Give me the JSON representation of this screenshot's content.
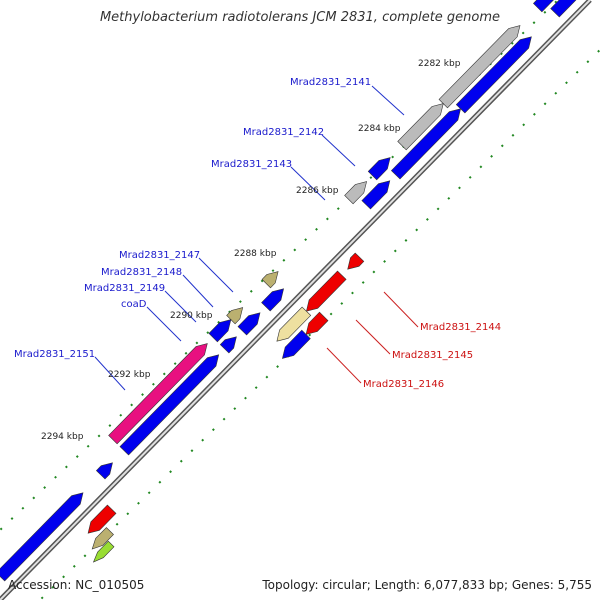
{
  "title": "Methylobacterium radiotolerans JCM 2831, complete genome",
  "footer": {
    "accession": "Accession: NC_010505",
    "summary": "Topology: circular; Length: 6,077,833 bp; Genes: 5,755"
  },
  "colors": {
    "plus_strand": "#0000ee",
    "minus_strand": "#ee0000",
    "grey": "#bbbbbb",
    "khaki": "#bbb070",
    "pale_yellow": "#eee0a0",
    "magenta": "#e81080",
    "lime": "#99dd33",
    "tick": "#228822",
    "backbone": "#777777"
  },
  "kbp_labels": [
    "2282 kbp",
    "2284 kbp",
    "2286 kbp",
    "2288 kbp",
    "2290 kbp",
    "2292 kbp",
    "2294 kbp"
  ],
  "gene_labels_plus": [
    "Mrad2831_2141",
    "Mrad2831_2142",
    "Mrad2831_2143",
    "Mrad2831_2147",
    "Mrad2831_2148",
    "Mrad2831_2149",
    "coaD",
    "Mrad2831_2151"
  ],
  "gene_labels_minus": [
    "Mrad2831_2144",
    "Mrad2831_2145",
    "Mrad2831_2146"
  ]
}
